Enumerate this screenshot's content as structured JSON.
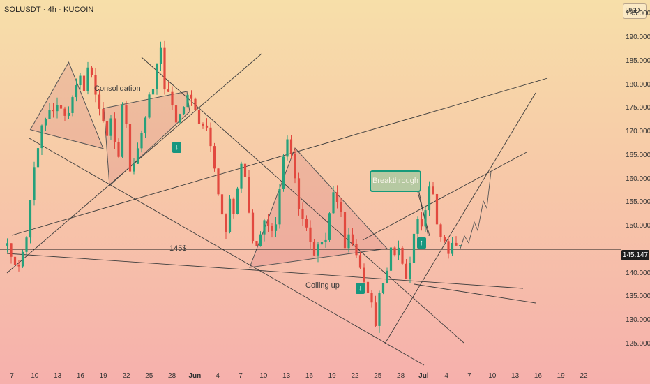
{
  "header": {
    "title": "SOLUSDT · 4h · KUCOIN",
    "unit": "USDT"
  },
  "price_tag": "145.147",
  "annotations": {
    "consolidation": "Consolidation",
    "coiling_up": "Coiling up",
    "breakthrough": "Breakthrough",
    "support": "145$"
  },
  "icons": {
    "down_arrow": "↓",
    "up_arrow": "↑"
  },
  "colors": {
    "bull": "#26a17b",
    "bear": "#e2493f",
    "accent": "#159a7a",
    "line": "#3a3a3a"
  },
  "chart_data": {
    "type": "candlestick",
    "title": "SOLUSDT · 4h · KUCOIN",
    "ylabel": "USDT",
    "ylim": [
      121,
      198
    ],
    "yticks": [
      "195.000",
      "190.000",
      "185.000",
      "180.000",
      "175.000",
      "170.000",
      "165.000",
      "160.000",
      "155.000",
      "150.000",
      "145.147",
      "140.000",
      "135.000",
      "130.000",
      "125.000"
    ],
    "xticks": [
      "7",
      "10",
      "13",
      "16",
      "19",
      "22",
      "25",
      "28",
      "Jun",
      "4",
      "7",
      "10",
      "13",
      "16",
      "19",
      "22",
      "25",
      "28",
      "Jul",
      "4",
      "7",
      "10",
      "13",
      "16",
      "19",
      "22"
    ],
    "last_price": 145.147,
    "support_level": 145,
    "grid": false,
    "anchors": [
      [
        0,
        147
      ],
      [
        2,
        144
      ],
      [
        4,
        141
      ],
      [
        6,
        148
      ],
      [
        8,
        162
      ],
      [
        10,
        171
      ],
      [
        12,
        174
      ],
      [
        14,
        176
      ],
      [
        16,
        173
      ],
      [
        18,
        177
      ],
      [
        19,
        180
      ],
      [
        20,
        181
      ],
      [
        21,
        178
      ],
      [
        22,
        184.5
      ],
      [
        23,
        182
      ],
      [
        24,
        177
      ],
      [
        26,
        172
      ],
      [
        27,
        169
      ],
      [
        28,
        172
      ],
      [
        29,
        167
      ],
      [
        30,
        165
      ],
      [
        31,
        176
      ],
      [
        32,
        171
      ],
      [
        33,
        162
      ],
      [
        34,
        164
      ],
      [
        36,
        170
      ],
      [
        38,
        177
      ],
      [
        39,
        179
      ],
      [
        40,
        184
      ],
      [
        41,
        187
      ],
      [
        42,
        180
      ],
      [
        43,
        179
      ],
      [
        45,
        172
      ],
      [
        47,
        176
      ],
      [
        49,
        178
      ],
      [
        50,
        175
      ],
      [
        51,
        172
      ],
      [
        53,
        170
      ],
      [
        54,
        167
      ],
      [
        55,
        163
      ],
      [
        56,
        157
      ],
      [
        57,
        153
      ],
      [
        58,
        149
      ],
      [
        59,
        156
      ],
      [
        60,
        153
      ],
      [
        61,
        158
      ],
      [
        62,
        163
      ],
      [
        63,
        161
      ],
      [
        64,
        152
      ],
      [
        65,
        147
      ],
      [
        66,
        145
      ],
      [
        67,
        148
      ],
      [
        68,
        151
      ],
      [
        69,
        150
      ],
      [
        70,
        149
      ],
      [
        71,
        150
      ],
      [
        72,
        157
      ],
      [
        73,
        165
      ],
      [
        74,
        168
      ],
      [
        75,
        166
      ],
      [
        76,
        160
      ],
      [
        77,
        154
      ],
      [
        78,
        152
      ],
      [
        79,
        150
      ],
      [
        80,
        146
      ],
      [
        81,
        143
      ],
      [
        82,
        147
      ],
      [
        83,
        146
      ],
      [
        84,
        148
      ],
      [
        85,
        153
      ],
      [
        86,
        158
      ],
      [
        87,
        156
      ],
      [
        88,
        152
      ],
      [
        89,
        146
      ],
      [
        90,
        148
      ],
      [
        91,
        147
      ],
      [
        92,
        144
      ],
      [
        93,
        141
      ],
      [
        94,
        139
      ],
      [
        95,
        135
      ],
      [
        96,
        133
      ],
      [
        97,
        128
      ],
      [
        98,
        135
      ],
      [
        99,
        137
      ],
      [
        100,
        140
      ],
      [
        101,
        146
      ],
      [
        102,
        145
      ],
      [
        103,
        146
      ],
      [
        104,
        143
      ],
      [
        105,
        140
      ],
      [
        106,
        142
      ],
      [
        107,
        149
      ],
      [
        108,
        151
      ],
      [
        109,
        150
      ],
      [
        110,
        153
      ],
      [
        111,
        159
      ],
      [
        112,
        156
      ],
      [
        113,
        151
      ],
      [
        114,
        148
      ],
      [
        115,
        146
      ],
      [
        116,
        145
      ],
      [
        117,
        146.5
      ],
      [
        118,
        147
      ],
      [
        119,
        145.1
      ]
    ]
  }
}
